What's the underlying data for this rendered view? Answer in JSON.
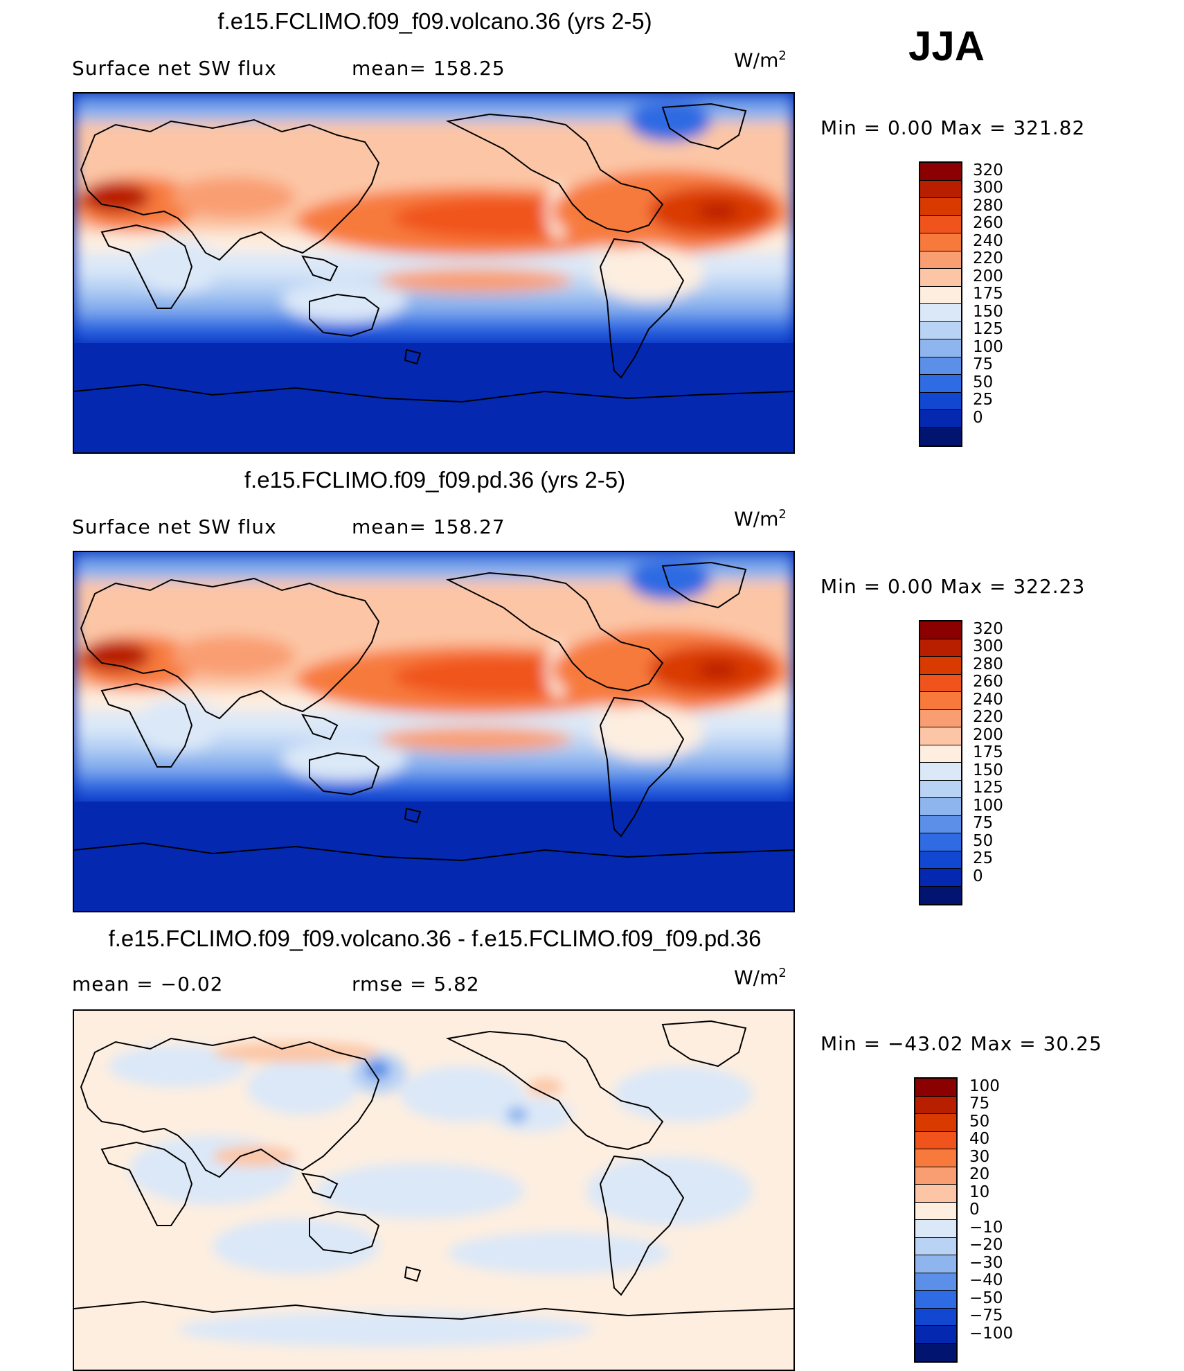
{
  "season": "JJA",
  "panels": [
    {
      "title": "f.e15.FCLIMO.f09_f09.volcano.36 (yrs 2-5)",
      "left_label": "Surface net SW flux",
      "mid_label": "mean= 158.25",
      "units": "W/m",
      "units_sup": "2",
      "minmax": "Min =    0.00 Max =  321.82",
      "levels": [
        "320",
        "300",
        "280",
        "260",
        "240",
        "220",
        "200",
        "175",
        "150",
        "125",
        "100",
        "75",
        "50",
        "25",
        "0"
      ],
      "colors": [
        "#8b0000",
        "#b81f00",
        "#d93a00",
        "#f0541c",
        "#f77a3c",
        "#f99e72",
        "#fcc6a6",
        "#fdeee0",
        "#dbe8f8",
        "#b9d3f4",
        "#8fb5ee",
        "#5c8fe8",
        "#2f6be2",
        "#1247d2",
        "#0428b0",
        "#001470"
      ]
    },
    {
      "title": "f.e15.FCLIMO.f09_f09.pd.36 (yrs 2-5)",
      "left_label": "Surface net SW flux",
      "mid_label": "mean= 158.27",
      "units": "W/m",
      "units_sup": "2",
      "minmax": "Min =    0.00 Max =  322.23",
      "levels": [
        "320",
        "300",
        "280",
        "260",
        "240",
        "220",
        "200",
        "175",
        "150",
        "125",
        "100",
        "75",
        "50",
        "25",
        "0"
      ],
      "colors": [
        "#8b0000",
        "#b81f00",
        "#d93a00",
        "#f0541c",
        "#f77a3c",
        "#f99e72",
        "#fcc6a6",
        "#fdeee0",
        "#dbe8f8",
        "#b9d3f4",
        "#8fb5ee",
        "#5c8fe8",
        "#2f6be2",
        "#1247d2",
        "#0428b0",
        "#001470"
      ]
    },
    {
      "title": "f.e15.FCLIMO.f09_f09.volcano.36 - f.e15.FCLIMO.f09_f09.pd.36",
      "left_label": "mean =   −0.02",
      "mid_label": "rmse =    5.82",
      "units": "W/m",
      "units_sup": "2",
      "minmax": "Min = −43.02 Max =   30.25",
      "levels": [
        "100",
        "75",
        "50",
        "40",
        "30",
        "20",
        "10",
        "0",
        "−10",
        "−20",
        "−30",
        "−40",
        "−50",
        "−75",
        "−100"
      ],
      "colors": [
        "#8b0000",
        "#b81f00",
        "#d93a00",
        "#f0541c",
        "#f77a3c",
        "#f99e72",
        "#fcc6a6",
        "#fdeee0",
        "#dbe8f8",
        "#b9d3f4",
        "#8fb5ee",
        "#5c8fe8",
        "#2f6be2",
        "#1247d2",
        "#0428b0",
        "#001470"
      ]
    }
  ],
  "chart_data": [
    {
      "type": "heatmap",
      "title": "f.e15.FCLIMO.f09_f09.volcano.36 (yrs 2-5)",
      "variable": "Surface net SW flux",
      "season": "JJA",
      "units": "W/m2",
      "mean": 158.25,
      "min": 0.0,
      "max": 321.82,
      "contour_levels": [
        0,
        25,
        50,
        75,
        100,
        125,
        150,
        175,
        200,
        220,
        240,
        260,
        280,
        300,
        320
      ]
    },
    {
      "type": "heatmap",
      "title": "f.e15.FCLIMO.f09_f09.pd.36 (yrs 2-5)",
      "variable": "Surface net SW flux",
      "season": "JJA",
      "units": "W/m2",
      "mean": 158.27,
      "min": 0.0,
      "max": 322.23,
      "contour_levels": [
        0,
        25,
        50,
        75,
        100,
        125,
        150,
        175,
        200,
        220,
        240,
        260,
        280,
        300,
        320
      ]
    },
    {
      "type": "heatmap",
      "title": "f.e15.FCLIMO.f09_f09.volcano.36 - f.e15.FCLIMO.f09_f09.pd.36",
      "season": "JJA",
      "units": "W/m2",
      "mean": -0.02,
      "rmse": 5.82,
      "min": -43.02,
      "max": 30.25,
      "contour_levels": [
        -100,
        -75,
        -50,
        -40,
        -30,
        -20,
        -10,
        0,
        10,
        20,
        30,
        40,
        50,
        75,
        100
      ]
    }
  ]
}
